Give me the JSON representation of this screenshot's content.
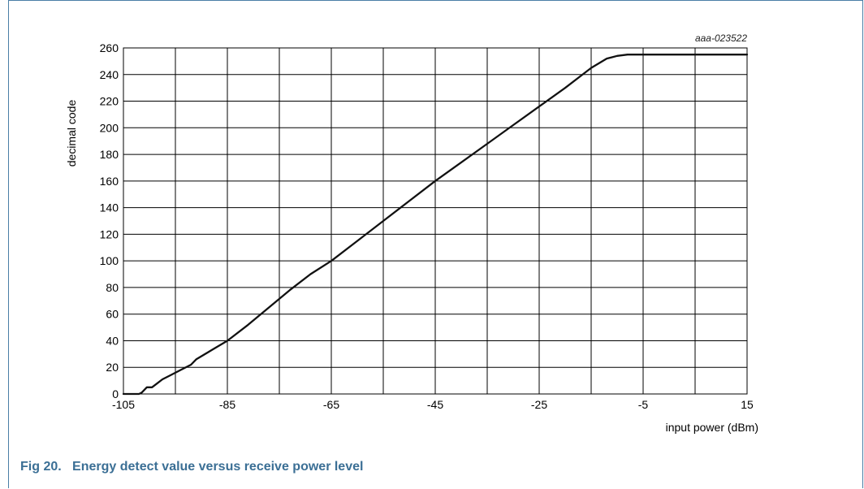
{
  "figure": {
    "label": "Fig 20.",
    "caption": "Energy detect value versus receive power level",
    "code": "aaa-023522"
  },
  "chart_data": {
    "type": "line",
    "title": "",
    "xlabel": "input power (dBm)",
    "ylabel": "decimal code",
    "xlim": [
      -105,
      15
    ],
    "ylim": [
      0,
      260
    ],
    "xticks": [
      -105,
      -85,
      -65,
      -45,
      -25,
      -5,
      15
    ],
    "yticks": [
      0,
      20,
      40,
      60,
      80,
      100,
      120,
      140,
      160,
      180,
      200,
      220,
      240,
      260
    ],
    "grid": true,
    "xgrid_step": 10,
    "series": [
      {
        "x": [
          -105,
          -102,
          -101.5,
          -100.5,
          -99.5,
          -98.5,
          -97.5,
          -96,
          -94,
          -92,
          -91,
          -88,
          -85,
          -81,
          -77,
          -73,
          -69,
          -65,
          -60,
          -55,
          -50,
          -45,
          -40,
          -35,
          -30,
          -25,
          -20,
          -15,
          -12,
          -11,
          -10,
          -8,
          15
        ],
        "y": [
          0,
          0,
          1,
          5,
          5,
          8,
          11,
          14,
          18,
          22,
          26,
          33,
          40,
          52,
          65,
          78,
          90,
          100,
          115,
          130,
          145,
          160,
          174,
          188,
          202,
          216,
          230,
          245,
          252,
          253,
          254,
          255,
          255
        ]
      }
    ]
  }
}
